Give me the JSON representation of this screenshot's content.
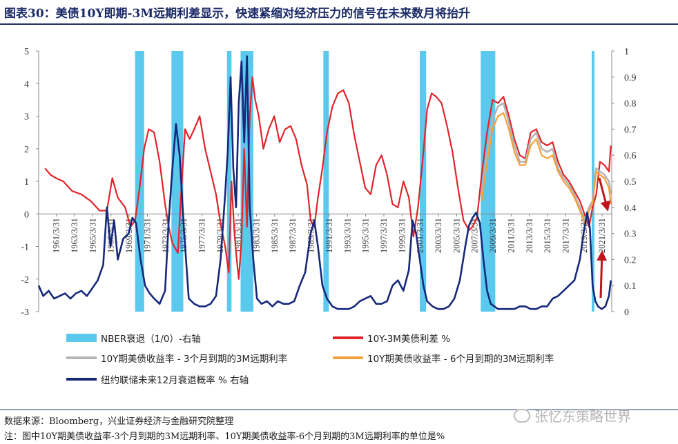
{
  "title": "图表30：美债10Y即期-3M远期利差显示，快速紧缩对经济压力的信号在未来数月将抬升",
  "source": "数据来源：Bloomberg，兴业证券经济与金融研究院整理",
  "note": "注：图中10Y期美债收益率-3个月到期的3M远期利率、10Y期美债收益率-6个月到期的3M远期利率的单位是%",
  "watermark": "张忆东策略世界",
  "colors": {
    "recession": "#5bc8ee",
    "spread": "#e0242a",
    "fwd3m": "#b4b4b4",
    "fwd6m": "#f5a03a",
    "prob": "#16287a",
    "arrow": "#c0141c"
  },
  "legend": {
    "recession": "NBER衰退（1/0）-右轴",
    "spread": "10Y-3M美债利差 %",
    "fwd3m": "10Y期美债收益率 - 3个月到期的3M远期利率",
    "fwd6m": "10Y期美债收益率 - 6个月到期的3M远期利率",
    "prob": "纽约联储未来12月衰退概率 % 右轴"
  },
  "chart_data": {
    "type": "line",
    "x_range": [
      1959.3,
      2022.3
    ],
    "x_tick_labels": [
      "1961/3/31",
      "1963/3/31",
      "1965/3/31",
      "1967/3/31",
      "1969/3/31",
      "1971/3/31",
      "1973/3/31",
      "1975/3/31",
      "1977/3/31",
      "1979/3/31",
      "1981/3/31",
      "1983/3/31",
      "1985/3/31",
      "1987/3/31",
      "1989/3/31",
      "1991/3/31",
      "1993/3/31",
      "1995/3/31",
      "1997/3/31",
      "1999/3/31",
      "2001/3/31",
      "2003/3/31",
      "2005/3/31",
      "2007/3/31",
      "2009/3/31",
      "2011/3/31",
      "2013/3/31",
      "2015/3/31",
      "2017/3/31",
      "2019/3/31",
      "2021/3/31"
    ],
    "x_tick_values": [
      1961.25,
      1963.25,
      1965.25,
      1967.25,
      1969.25,
      1971.25,
      1973.25,
      1975.25,
      1977.25,
      1979.25,
      1981.25,
      1983.25,
      1985.25,
      1987.25,
      1989.25,
      1991.25,
      1993.25,
      1995.25,
      1997.25,
      1999.25,
      2001.25,
      2003.25,
      2005.25,
      2007.25,
      2009.25,
      2011.25,
      2013.25,
      2015.25,
      2017.25,
      2019.25,
      2021.25
    ],
    "y_left": {
      "range": [
        -3,
        5
      ],
      "ticks": [
        "-3",
        "-2",
        "-1",
        "0",
        "1",
        "2",
        "3",
        "4",
        "5"
      ]
    },
    "y_right": {
      "range": [
        0,
        1
      ],
      "ticks": [
        "0",
        "0.1",
        "0.2",
        "0.3",
        "0.4",
        "0.5",
        "0.6",
        "0.7",
        "0.8",
        "0.9",
        "1"
      ]
    },
    "recessions": [
      [
        1969.9,
        1970.9
      ],
      [
        1973.9,
        1975.2
      ],
      [
        1980.0,
        1980.5
      ],
      [
        1981.5,
        1982.9
      ],
      [
        1990.6,
        1991.2
      ],
      [
        2001.2,
        2001.9
      ],
      [
        2007.9,
        2009.5
      ],
      [
        2020.1,
        2020.4
      ]
    ],
    "series": [
      {
        "name": "10Y-3M美债利差 %",
        "axis": "left",
        "key": "spread",
        "x": [
          1960.0,
          1960.6,
          1961.2,
          1962.0,
          1963.0,
          1964.0,
          1965.0,
          1966.0,
          1966.8,
          1967.4,
          1968.0,
          1968.8,
          1969.4,
          1969.9,
          1970.4,
          1970.9,
          1971.4,
          1972.0,
          1972.6,
          1973.2,
          1973.6,
          1974.0,
          1974.6,
          1975.0,
          1975.4,
          1975.9,
          1976.4,
          1977.0,
          1977.6,
          1978.2,
          1978.8,
          1979.3,
          1979.8,
          1980.2,
          1980.5,
          1980.8,
          1981.0,
          1981.3,
          1981.6,
          1981.9,
          1982.2,
          1982.5,
          1982.8,
          1983.1,
          1983.5,
          1984.0,
          1984.6,
          1985.2,
          1985.8,
          1986.4,
          1987.0,
          1987.6,
          1988.2,
          1988.8,
          1989.2,
          1989.6,
          1990.0,
          1990.5,
          1991.0,
          1991.6,
          1992.2,
          1992.8,
          1993.4,
          1994.0,
          1994.6,
          1995.2,
          1995.8,
          1996.4,
          1997.0,
          1997.6,
          1998.2,
          1998.8,
          1999.4,
          2000.0,
          2000.5,
          2001.0,
          2001.5,
          2002.0,
          2002.5,
          2003.0,
          2003.6,
          2004.2,
          2004.8,
          2005.4,
          2006.0,
          2006.6,
          2007.0,
          2007.5,
          2008.0,
          2008.6,
          2009.2,
          2009.8,
          2010.4,
          2011.0,
          2011.6,
          2012.2,
          2012.8,
          2013.4,
          2014.0,
          2014.6,
          2015.2,
          2015.8,
          2016.4,
          2017.0,
          2017.6,
          2018.2,
          2018.8,
          2019.3,
          2019.8,
          2020.2,
          2020.6,
          2021.0,
          2021.5,
          2022.0,
          2022.2
        ],
        "y": [
          1.4,
          1.2,
          1.1,
          1.0,
          0.7,
          0.6,
          0.4,
          0.1,
          0.1,
          1.1,
          0.5,
          0.2,
          -0.4,
          -0.2,
          0.8,
          2.0,
          2.6,
          2.5,
          1.6,
          0.3,
          -0.4,
          -0.9,
          -1.2,
          0.8,
          2.6,
          2.3,
          2.6,
          3.0,
          2.0,
          1.3,
          0.6,
          -0.3,
          -1.0,
          -1.8,
          1.0,
          -0.5,
          -1.2,
          -2.0,
          -0.8,
          2.0,
          -0.4,
          3.0,
          4.2,
          3.5,
          3.0,
          2.0,
          2.6,
          3.0,
          2.2,
          2.6,
          2.7,
          2.3,
          1.5,
          0.9,
          -0.2,
          -0.4,
          0.5,
          1.4,
          2.5,
          3.3,
          3.7,
          3.8,
          3.4,
          2.4,
          1.6,
          0.8,
          0.6,
          1.5,
          1.8,
          1.2,
          0.3,
          0.2,
          1.0,
          0.5,
          -0.7,
          0.2,
          1.6,
          3.2,
          3.7,
          3.6,
          3.4,
          2.7,
          1.9,
          0.8,
          -0.2,
          -0.5,
          -0.4,
          -0.1,
          1.2,
          2.5,
          3.5,
          3.4,
          3.6,
          3.0,
          2.3,
          1.8,
          1.7,
          2.5,
          2.6,
          2.2,
          2.1,
          2.2,
          1.6,
          1.2,
          1.0,
          0.7,
          0.4,
          0.0,
          -0.4,
          0.2,
          0.6,
          1.6,
          1.5,
          1.3,
          2.1
        ]
      },
      {
        "name": "10Y期美债收益率 - 3个月到期的3M远期利率",
        "axis": "left",
        "key": "fwd3m",
        "x": [
          2008.0,
          2008.6,
          2009.2,
          2009.8,
          2010.4,
          2011.0,
          2011.6,
          2012.2,
          2012.8,
          2013.4,
          2014.0,
          2014.6,
          2015.2,
          2015.8,
          2016.4,
          2017.0,
          2017.6,
          2018.2,
          2018.8,
          2019.3,
          2019.8,
          2020.2,
          2020.6,
          2021.0,
          2021.5,
          2022.0,
          2022.2
        ],
        "y": [
          0.6,
          1.8,
          2.9,
          3.3,
          3.4,
          2.8,
          2.1,
          1.6,
          1.6,
          2.3,
          2.5,
          2.0,
          1.9,
          2.0,
          1.4,
          1.1,
          0.9,
          0.6,
          0.2,
          -0.2,
          0.2,
          0.4,
          1.4,
          1.3,
          1.2,
          1.0,
          0.6
        ]
      },
      {
        "name": "10Y期美债收益率 - 6个月到期的3M远期利率",
        "axis": "left",
        "key": "fwd6m",
        "x": [
          2008.0,
          2008.6,
          2009.2,
          2009.8,
          2010.4,
          2011.0,
          2011.6,
          2012.2,
          2012.8,
          2013.4,
          2014.0,
          2014.6,
          2015.2,
          2015.8,
          2016.4,
          2017.0,
          2017.6,
          2018.2,
          2018.8,
          2019.3,
          2019.8,
          2020.2,
          2020.6,
          2021.0,
          2021.5,
          2022.0,
          2022.2
        ],
        "y": [
          0.4,
          1.6,
          2.6,
          3.0,
          3.1,
          2.6,
          1.9,
          1.5,
          1.5,
          2.1,
          2.3,
          1.8,
          1.7,
          1.8,
          1.3,
          1.0,
          0.8,
          0.5,
          0.1,
          -0.3,
          0.1,
          0.3,
          1.3,
          1.2,
          1.1,
          0.8,
          0.3
        ]
      },
      {
        "name": "纽约联储未来12月衰退概率 % 右轴",
        "axis": "right",
        "key": "prob",
        "x": [
          1959.3,
          1959.8,
          1960.4,
          1961.0,
          1961.6,
          1962.2,
          1962.8,
          1963.4,
          1964.0,
          1964.6,
          1965.2,
          1965.8,
          1966.4,
          1966.8,
          1967.2,
          1967.6,
          1968.0,
          1968.6,
          1969.2,
          1969.6,
          1970.0,
          1970.5,
          1971.0,
          1971.5,
          1972.0,
          1972.6,
          1973.2,
          1973.6,
          1974.0,
          1974.4,
          1974.8,
          1975.3,
          1975.8,
          1976.4,
          1977.0,
          1977.6,
          1978.2,
          1978.8,
          1979.3,
          1979.8,
          1980.1,
          1980.4,
          1980.7,
          1981.0,
          1981.3,
          1981.6,
          1981.9,
          1982.2,
          1982.5,
          1982.9,
          1983.3,
          1983.8,
          1984.4,
          1985.0,
          1985.6,
          1986.2,
          1986.8,
          1987.4,
          1988.0,
          1988.6,
          1989.2,
          1989.6,
          1990.0,
          1990.5,
          1991.0,
          1991.6,
          1992.2,
          1992.8,
          1993.4,
          1994.0,
          1994.6,
          1995.2,
          1995.8,
          1996.4,
          1997.0,
          1997.6,
          1998.2,
          1998.8,
          1999.4,
          2000.0,
          2000.4,
          2000.8,
          2001.2,
          2001.6,
          2002.0,
          2002.6,
          2003.2,
          2003.8,
          2004.4,
          2005.0,
          2005.6,
          2006.2,
          2006.6,
          2007.0,
          2007.4,
          2007.8,
          2008.2,
          2008.6,
          2009.0,
          2009.4,
          2009.8,
          2010.4,
          2011.0,
          2011.6,
          2012.2,
          2012.8,
          2013.4,
          2014.0,
          2014.6,
          2015.2,
          2015.8,
          2016.4,
          2017.0,
          2017.6,
          2018.2,
          2018.8,
          2019.2,
          2019.6,
          2019.9,
          2020.2,
          2020.5,
          2020.8,
          2021.2,
          2021.6,
          2022.0,
          2022.2
        ],
        "y": [
          0.1,
          0.06,
          0.08,
          0.05,
          0.06,
          0.07,
          0.05,
          0.07,
          0.08,
          0.06,
          0.09,
          0.12,
          0.18,
          0.4,
          0.25,
          0.35,
          0.2,
          0.28,
          0.3,
          0.36,
          0.34,
          0.2,
          0.1,
          0.07,
          0.05,
          0.03,
          0.08,
          0.35,
          0.55,
          0.72,
          0.6,
          0.3,
          0.05,
          0.03,
          0.02,
          0.02,
          0.03,
          0.06,
          0.2,
          0.45,
          0.62,
          0.9,
          0.55,
          0.4,
          0.8,
          0.96,
          0.65,
          0.98,
          0.4,
          0.2,
          0.05,
          0.03,
          0.04,
          0.02,
          0.04,
          0.03,
          0.03,
          0.04,
          0.1,
          0.15,
          0.3,
          0.35,
          0.25,
          0.1,
          0.05,
          0.02,
          0.01,
          0.01,
          0.01,
          0.02,
          0.04,
          0.05,
          0.06,
          0.03,
          0.03,
          0.04,
          0.1,
          0.12,
          0.08,
          0.16,
          0.35,
          0.3,
          0.2,
          0.1,
          0.04,
          0.02,
          0.01,
          0.01,
          0.02,
          0.05,
          0.12,
          0.25,
          0.33,
          0.36,
          0.38,
          0.34,
          0.2,
          0.08,
          0.03,
          0.02,
          0.01,
          0.01,
          0.01,
          0.01,
          0.02,
          0.02,
          0.01,
          0.01,
          0.02,
          0.02,
          0.05,
          0.06,
          0.08,
          0.1,
          0.12,
          0.2,
          0.3,
          0.38,
          0.32,
          0.1,
          0.04,
          0.02,
          0.01,
          0.02,
          0.06,
          0.12
        ]
      }
    ]
  }
}
